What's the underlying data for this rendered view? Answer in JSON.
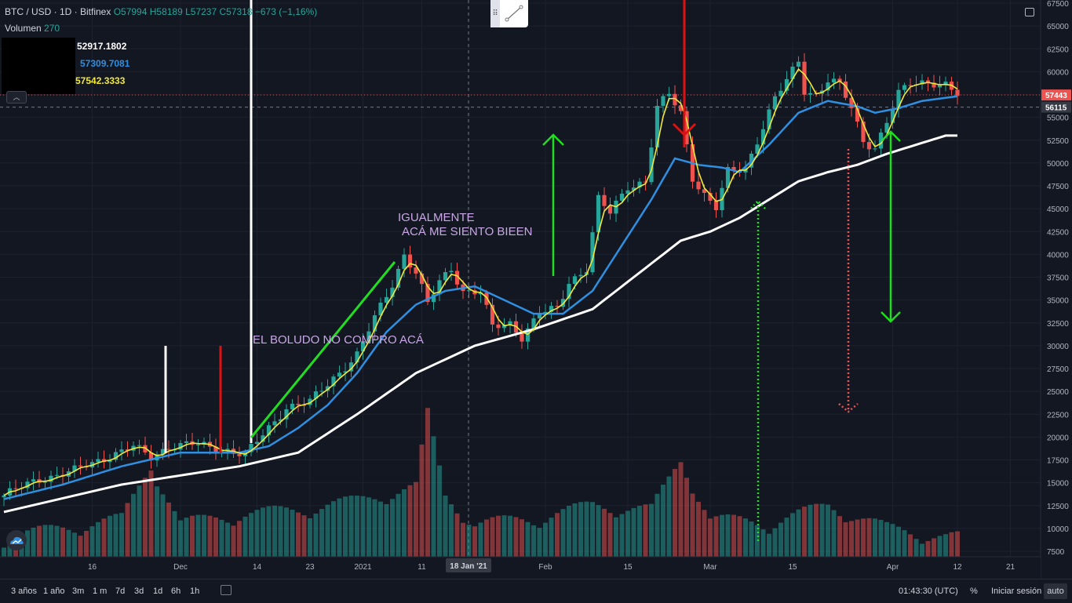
{
  "header": {
    "symbol": "BTC / USD · 1D · Bitfinex",
    "ohlc": "O57994 H58189 L57237 C57318 −673 (−1,16%)",
    "volume_label": "Volumen",
    "volume_value": "270"
  },
  "ma_values": {
    "white": "52917.1802",
    "blue": "57309.7081",
    "yellow": "57542.3333"
  },
  "annotations": {
    "text1": "EL BOLUDO  NO COMPRO ACÁ",
    "text2_line1": "IGUALMENTE",
    "text2_line2": "ACÁ ME SIENTO BIEEN"
  },
  "price_badges": {
    "last": "57443",
    "crosshair": "56115"
  },
  "crosshair_date": "18 Jan '21",
  "bottom_bar": {
    "timeframes": [
      "3 años",
      "1 año",
      "3m",
      "1 m",
      "7d",
      "3d",
      "1d",
      "6h",
      "1h"
    ],
    "clock": "01:43:30 (UTC)",
    "percent": "%",
    "login": "Iniciar sesión",
    "auto": "auto"
  },
  "colors": {
    "background": "#131722",
    "up": "#26a69a",
    "down": "#ef5350",
    "ma_white": "#ffffff",
    "ma_blue": "#2f8fe0",
    "ma_yellow": "#f2e93a",
    "arrow_green": "#22dd22",
    "arrow_red": "#dd1111"
  },
  "chart_data": {
    "type": "line",
    "ylim": [
      7500,
      67500
    ],
    "y_ticks": [
      7500,
      10000,
      12500,
      15000,
      17500,
      20000,
      22500,
      25000,
      27500,
      30000,
      32500,
      35000,
      37500,
      40000,
      42500,
      45000,
      47500,
      50000,
      52500,
      55000,
      57500,
      60000,
      62500,
      65000,
      67500
    ],
    "x_ticks": [
      {
        "label": "16",
        "day": 15
      },
      {
        "label": "Dec",
        "day": 30
      },
      {
        "label": "14",
        "day": 43
      },
      {
        "label": "23",
        "day": 52
      },
      {
        "label": "2021",
        "day": 61
      },
      {
        "label": "11",
        "day": 71
      },
      {
        "label": "Feb",
        "day": 92
      },
      {
        "label": "15",
        "day": 106
      },
      {
        "label": "Mar",
        "day": 120
      },
      {
        "label": "15",
        "day": 134
      },
      {
        "label": "Apr",
        "day": 151
      },
      {
        "label": "12",
        "day": 162
      },
      {
        "label": "21",
        "day": 171
      }
    ],
    "price_anchors": [
      [
        0,
        13600
      ],
      [
        6,
        15400
      ],
      [
        12,
        16300
      ],
      [
        18,
        18000
      ],
      [
        22,
        18900
      ],
      [
        25,
        17800
      ],
      [
        28,
        19000
      ],
      [
        32,
        19200
      ],
      [
        38,
        18600
      ],
      [
        41,
        18000
      ],
      [
        45,
        21000
      ],
      [
        48,
        23300
      ],
      [
        52,
        23800
      ],
      [
        56,
        26500
      ],
      [
        60,
        29000
      ],
      [
        63,
        33000
      ],
      [
        66,
        36800
      ],
      [
        68,
        40000
      ],
      [
        70,
        38000
      ],
      [
        72,
        34500
      ],
      [
        74,
        37000
      ],
      [
        76,
        38500
      ],
      [
        78,
        36000
      ],
      [
        81,
        35800
      ],
      [
        83,
        32000
      ],
      [
        86,
        32500
      ],
      [
        88,
        31000
      ],
      [
        91,
        33500
      ],
      [
        94,
        34000
      ],
      [
        96,
        37000
      ],
      [
        99,
        38500
      ],
      [
        101,
        46000
      ],
      [
        103,
        44500
      ],
      [
        106,
        47500
      ],
      [
        109,
        48000
      ],
      [
        111,
        56000
      ],
      [
        113,
        57500
      ],
      [
        115,
        55500
      ],
      [
        117,
        48500
      ],
      [
        119,
        46500
      ],
      [
        121,
        45000
      ],
      [
        123,
        49000
      ],
      [
        126,
        49500
      ],
      [
        128,
        52500
      ],
      [
        131,
        57000
      ],
      [
        133,
        59000
      ],
      [
        135,
        61200
      ],
      [
        136,
        58000
      ],
      [
        138,
        57500
      ],
      [
        140,
        59000
      ],
      [
        142,
        58500
      ],
      [
        144,
        56000
      ],
      [
        146,
        52500
      ],
      [
        148,
        51700
      ],
      [
        150,
        54500
      ],
      [
        152,
        57500
      ],
      [
        154,
        58700
      ],
      [
        157,
        59000
      ],
      [
        160,
        58500
      ],
      [
        162,
        57400
      ]
    ],
    "ma_white_anchors": [
      [
        0,
        11800
      ],
      [
        20,
        14800
      ],
      [
        40,
        16800
      ],
      [
        50,
        18300
      ],
      [
        60,
        22500
      ],
      [
        70,
        27000
      ],
      [
        80,
        30000
      ],
      [
        90,
        31800
      ],
      [
        100,
        34000
      ],
      [
        110,
        39000
      ],
      [
        115,
        41500
      ],
      [
        120,
        42500
      ],
      [
        125,
        44000
      ],
      [
        130,
        46000
      ],
      [
        135,
        48000
      ],
      [
        140,
        49000
      ],
      [
        145,
        49800
      ],
      [
        150,
        51000
      ],
      [
        155,
        52000
      ],
      [
        160,
        53000
      ]
    ],
    "ma_blue_anchors": [
      [
        0,
        13200
      ],
      [
        10,
        14800
      ],
      [
        20,
        16800
      ],
      [
        30,
        18300
      ],
      [
        40,
        18300
      ],
      [
        45,
        19000
      ],
      [
        50,
        21000
      ],
      [
        55,
        23500
      ],
      [
        60,
        27000
      ],
      [
        65,
        31500
      ],
      [
        70,
        34500
      ],
      [
        75,
        36000
      ],
      [
        80,
        36500
      ],
      [
        85,
        35000
      ],
      [
        90,
        33500
      ],
      [
        95,
        33500
      ],
      [
        100,
        36000
      ],
      [
        105,
        41000
      ],
      [
        110,
        46000
      ],
      [
        114,
        50500
      ],
      [
        118,
        49800
      ],
      [
        122,
        49500
      ],
      [
        125,
        49000
      ],
      [
        130,
        52000
      ],
      [
        135,
        55500
      ],
      [
        140,
        56800
      ],
      [
        145,
        56200
      ],
      [
        148,
        55500
      ],
      [
        152,
        56000
      ],
      [
        156,
        56800
      ],
      [
        162,
        57300
      ]
    ],
    "volume_anchors": [
      [
        0,
        8500
      ],
      [
        10,
        9500
      ],
      [
        20,
        10500
      ],
      [
        25,
        16500
      ],
      [
        30,
        10000
      ],
      [
        40,
        11000
      ],
      [
        50,
        11500
      ],
      [
        60,
        12500
      ],
      [
        70,
        14000
      ],
      [
        72,
        22000
      ],
      [
        75,
        13000
      ],
      [
        80,
        10000
      ],
      [
        90,
        10500
      ],
      [
        100,
        12000
      ],
      [
        110,
        11500
      ],
      [
        115,
        17000
      ],
      [
        120,
        10500
      ],
      [
        130,
        10000
      ],
      [
        140,
        12000
      ],
      [
        150,
        9500
      ],
      [
        160,
        8500
      ]
    ]
  }
}
